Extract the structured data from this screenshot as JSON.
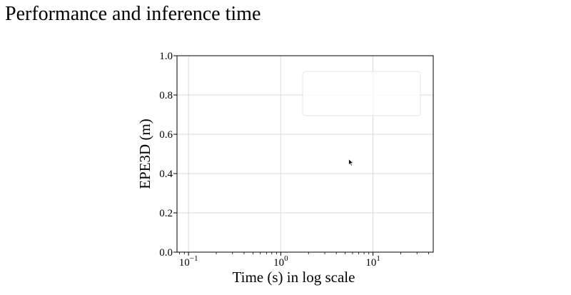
{
  "page": {
    "heading": "Performance and inference time"
  },
  "chart_data": {
    "type": "scatter",
    "title": "",
    "xlabel": "Time (s) in log scale",
    "ylabel": "EPE3D (m)",
    "xscale": "log",
    "xlim": [
      0.075,
      45
    ],
    "ylim": [
      0.0,
      1.0
    ],
    "x_ticks": [
      {
        "value": 0.1,
        "base": "10",
        "exponent": "−1"
      },
      {
        "value": 1,
        "base": "10",
        "exponent": "0"
      },
      {
        "value": 10,
        "base": "10",
        "exponent": "1"
      }
    ],
    "y_ticks": [
      "0.0",
      "0.2",
      "0.4",
      "0.6",
      "0.8",
      "1.0"
    ],
    "grid": true,
    "legend": {
      "placement": "upper right",
      "entries": []
    },
    "series": [],
    "colors": {
      "grid": "#d9d9d9",
      "axes": "#000000",
      "legend_border": "#e6e6e6"
    }
  },
  "cursor": {
    "icon": "arrow-pointer-icon"
  }
}
